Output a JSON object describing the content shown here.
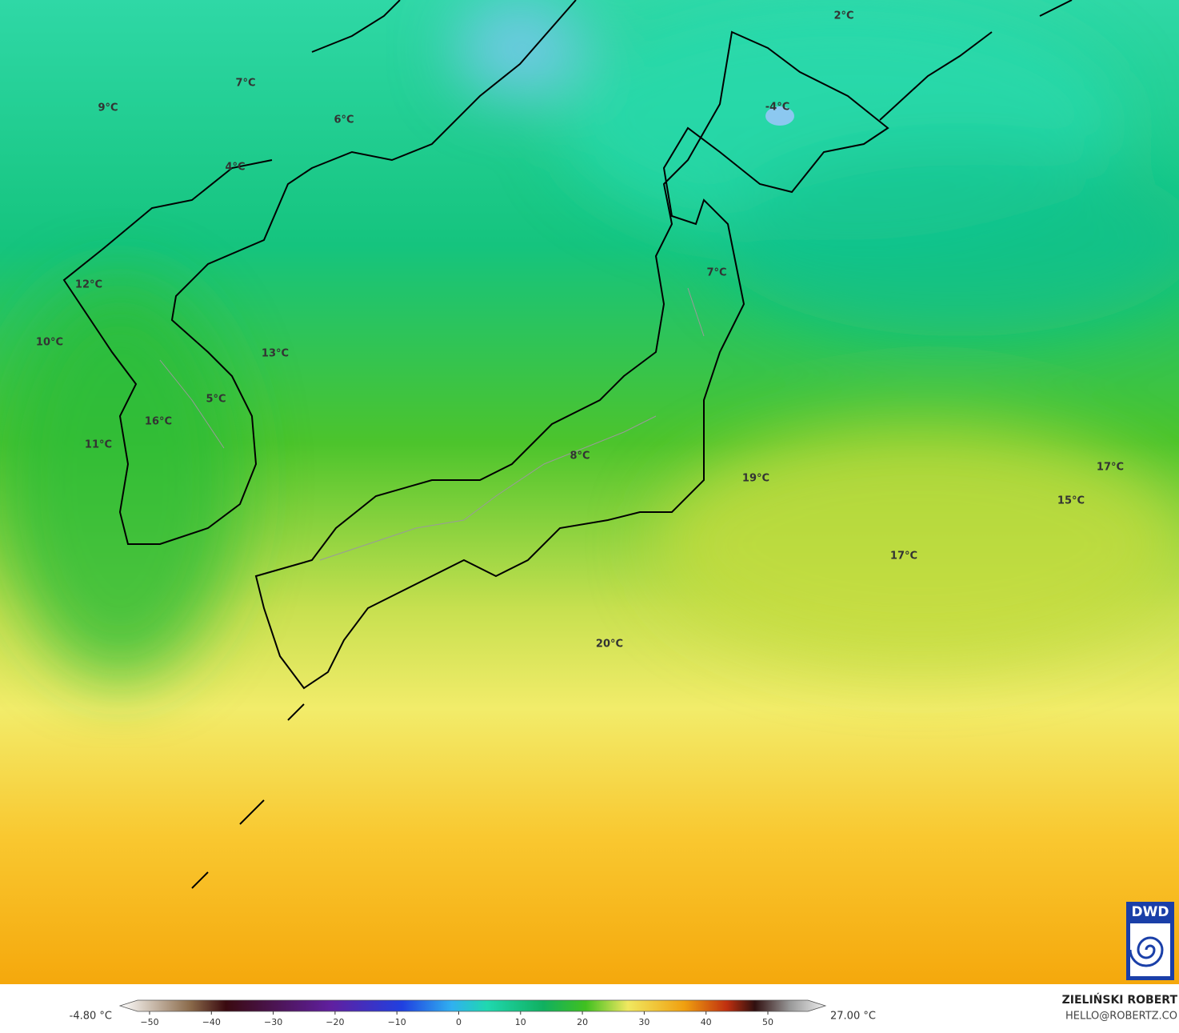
{
  "map": {
    "labels": [
      "2°C",
      "7°C",
      "9°C",
      "-4°C",
      "6°C",
      "4°C",
      "12°C",
      "7°C",
      "10°C",
      "13°C",
      "5°C",
      "16°C",
      "11°C",
      "8°C",
      "17°C",
      "19°C",
      "15°C",
      "17°C",
      "20°C"
    ],
    "logo": "DWD",
    "author": "ZIELIŃSKI ROBERT",
    "email": "HELLO@ROBERTZ.CO"
  },
  "colorbar": {
    "min_label": "-4.80 °C",
    "max_label": "27.00 °C",
    "ticks": [
      {
        "value": -50,
        "label": "−50"
      },
      {
        "value": -40,
        "label": "−40"
      },
      {
        "value": -30,
        "label": "−30"
      },
      {
        "value": -20,
        "label": "−20"
      },
      {
        "value": -10,
        "label": "−10"
      },
      0,
      10,
      20,
      30,
      40,
      50
    ]
  }
}
